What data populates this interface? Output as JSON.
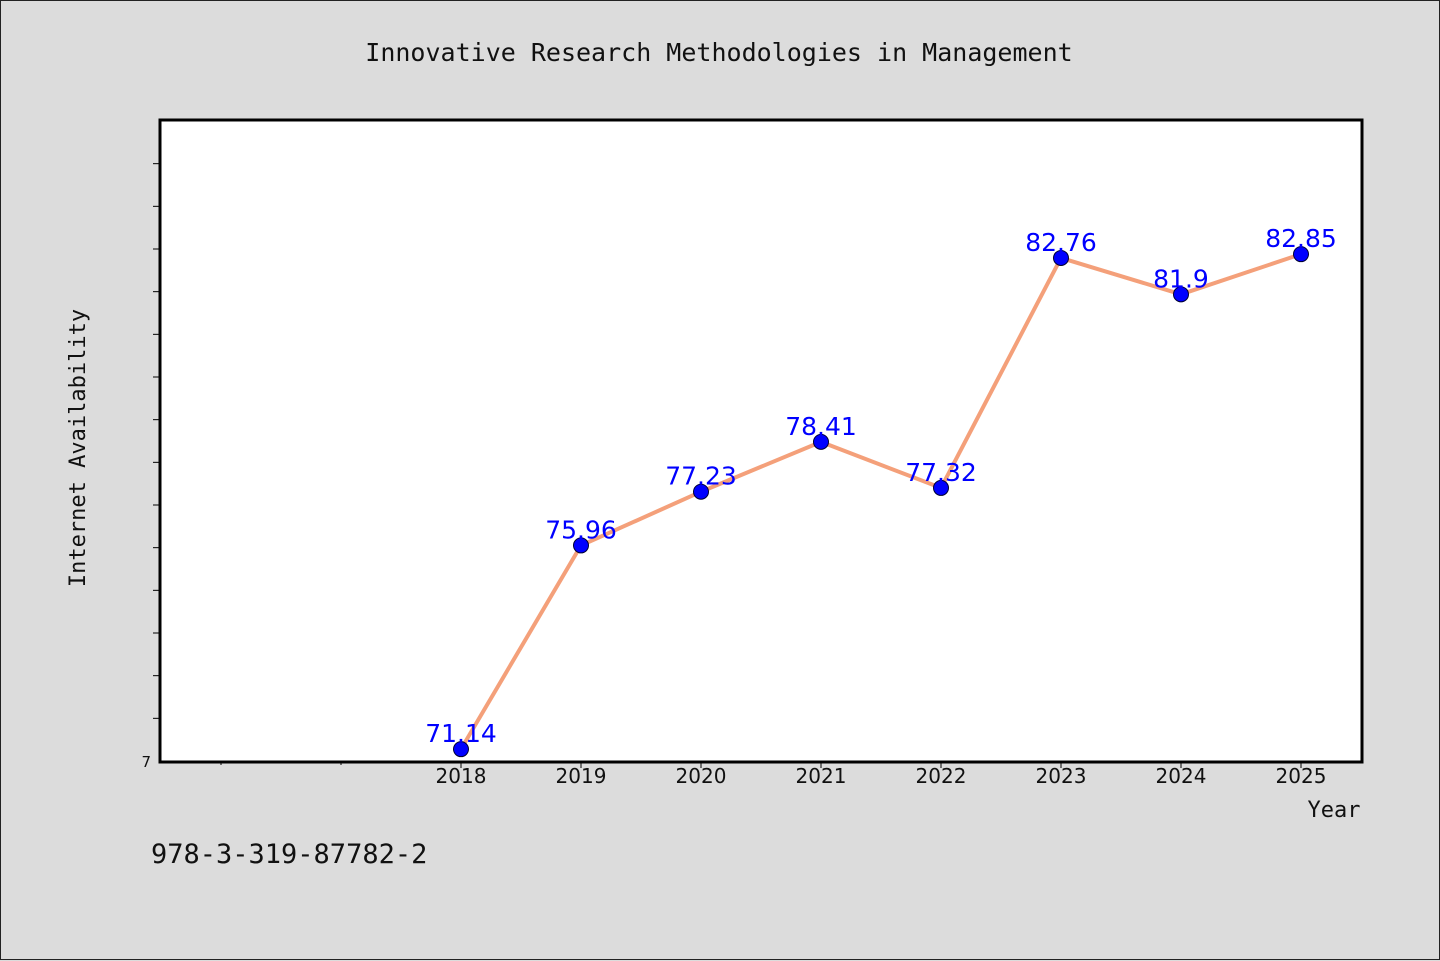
{
  "chart_data": {
    "type": "line",
    "title": "Innovative Research Methodologies in Management",
    "xlabel": "Year",
    "ylabel": "Internet Availability",
    "x": [
      "2018",
      "2019",
      "2020",
      "2021",
      "2022",
      "2023",
      "2024",
      "2025"
    ],
    "series": [
      {
        "values": [
          71.14,
          75.96,
          77.23,
          78.41,
          77.32,
          82.76,
          81.9,
          82.85
        ],
        "line_color": "#f4a07a",
        "marker_color": "#0000ff",
        "label_color": "#0000ff"
      }
    ],
    "data_labels": [
      "71.14",
      "75.96",
      "77.23",
      "78.41",
      "77.32",
      "82.76",
      "81.9",
      "82.85"
    ],
    "y_tick_labels": [
      "7"
    ],
    "xlim": [
      2015.5,
      2025.5
    ],
    "ylim": [
      70.86,
      86.0
    ],
    "grid": false,
    "legend": "none"
  },
  "footnote": "978-3-319-87782-2"
}
